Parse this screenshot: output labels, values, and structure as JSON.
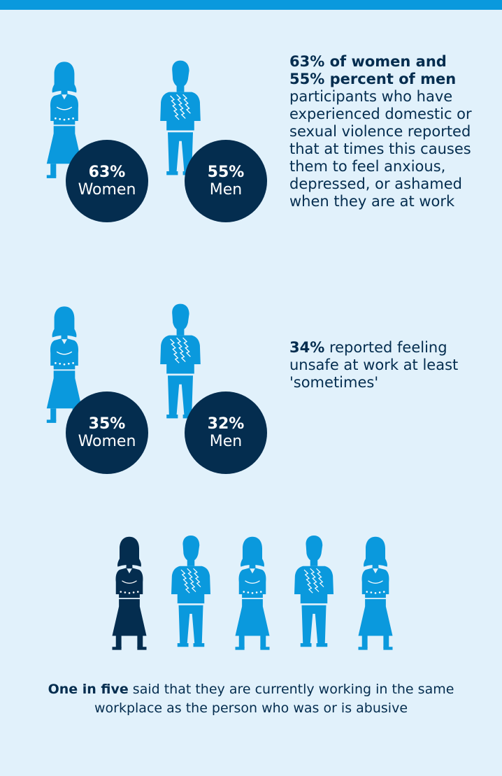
{
  "colors": {
    "light": "#0a99dd",
    "dark": "#042d4f",
    "background": "#e1f1fb"
  },
  "section1": {
    "women_pct": "63%",
    "women_label": "Women",
    "men_pct": "55%",
    "men_label": "Men",
    "text_bold": "63% of women and 55% percent of men",
    "text_rest": " participants who have experienced domestic or sexual violence reported that at times this causes them to feel anxious, depressed, or ashamed when they are at work"
  },
  "section2": {
    "women_pct": "35%",
    "women_label": "Women",
    "men_pct": "32%",
    "men_label": "Men",
    "text_bold": "34%",
    "text_rest": " reported feeling unsafe at work at least 'sometimes'"
  },
  "section3": {
    "figures": [
      "woman-dark",
      "man",
      "woman",
      "man",
      "woman"
    ],
    "text_bold": "One in five",
    "text_rest": " said that they are currently working in the same workplace as the person who was or is abusive"
  }
}
